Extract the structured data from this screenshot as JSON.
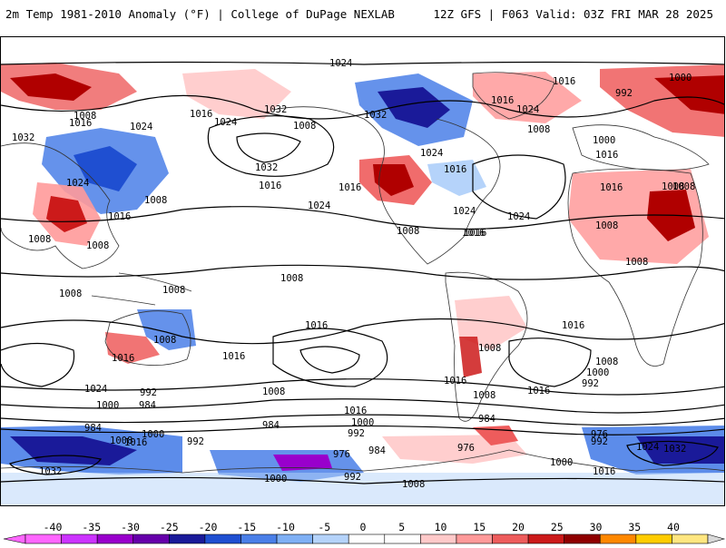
{
  "header": {
    "title": "2m Temp 1981-2010 Anomaly (°F) | College of DuPage NEXLAB",
    "run_info": "12Z GFS | F063 Valid: 03Z FRI MAR 28 2025"
  },
  "map": {
    "variable": "2m temperature anomaly",
    "contour_field": "sea level pressure isobars",
    "isobar_labels": [
      {
        "id": "1024-npac",
        "text": "1024"
      },
      {
        "id": "1008-scan",
        "text": "1008"
      },
      {
        "id": "1016-scan",
        "text": "1016"
      },
      {
        "id": "1024-russia",
        "text": "1024"
      },
      {
        "id": "1016-russia",
        "text": "1016"
      },
      {
        "id": "1032-asia",
        "text": "1032"
      },
      {
        "id": "1024-asia",
        "text": "1024"
      },
      {
        "id": "1024-asia2",
        "text": "1024"
      },
      {
        "id": "1016-china",
        "text": "1016"
      },
      {
        "id": "1008-china",
        "text": "1008"
      },
      {
        "id": "1008-india",
        "text": "1008"
      },
      {
        "id": "1008-sea",
        "text": "1008"
      },
      {
        "id": "1008-pac",
        "text": "1008"
      },
      {
        "id": "1032-npac",
        "text": "1032"
      },
      {
        "id": "1008-ak",
        "text": "1008"
      },
      {
        "id": "1032-can",
        "text": "1032"
      },
      {
        "id": "1024-can",
        "text": "1024"
      },
      {
        "id": "1016-can",
        "text": "1016"
      },
      {
        "id": "1032-pac2",
        "text": "1032"
      },
      {
        "id": "1016-pac",
        "text": "1016"
      },
      {
        "id": "1024-pac",
        "text": "1024"
      },
      {
        "id": "1016-us",
        "text": "1016"
      },
      {
        "id": "1016-us2",
        "text": "1016"
      },
      {
        "id": "1024-atl",
        "text": "1024"
      },
      {
        "id": "1008-mex",
        "text": "1008"
      },
      {
        "id": "1016-atl",
        "text": "1016"
      },
      {
        "id": "1024-atl2",
        "text": "1024"
      },
      {
        "id": "1016-green",
        "text": "1016"
      },
      {
        "id": "1024-green",
        "text": "1024"
      },
      {
        "id": "1008-green",
        "text": "1008"
      },
      {
        "id": "1016-arc",
        "text": "1016"
      },
      {
        "id": "992-arc",
        "text": "992"
      },
      {
        "id": "1000-arc",
        "text": "1000"
      },
      {
        "id": "1000-eur",
        "text": "1000"
      },
      {
        "id": "1016-eur",
        "text": "1016"
      },
      {
        "id": "1016-eur2",
        "text": "1016"
      },
      {
        "id": "1008-med",
        "text": "1008"
      },
      {
        "id": "1008-afr",
        "text": "1008"
      },
      {
        "id": "1008-mideast",
        "text": "1008"
      },
      {
        "id": "1008-afr2",
        "text": "1008"
      },
      {
        "id": "1008-aus",
        "text": "1008"
      },
      {
        "id": "1008-indo",
        "text": "1008"
      },
      {
        "id": "1008-aus2",
        "text": "1008"
      },
      {
        "id": "1016-aus",
        "text": "1016"
      },
      {
        "id": "1016-tas",
        "text": "1016"
      },
      {
        "id": "1016-spac",
        "text": "1016"
      },
      {
        "id": "1008-chile",
        "text": "1008"
      },
      {
        "id": "1016-arg",
        "text": "1016"
      },
      {
        "id": "1008-arg",
        "text": "1008"
      },
      {
        "id": "1016-satl",
        "text": "1016"
      },
      {
        "id": "1016-sind",
        "text": "1016"
      },
      {
        "id": "1008-sind",
        "text": "1008"
      },
      {
        "id": "1000-sind",
        "text": "1000"
      },
      {
        "id": "992-sind",
        "text": "992"
      },
      {
        "id": "1024-sind",
        "text": "1024"
      },
      {
        "id": "1000-sind2",
        "text": "1000"
      },
      {
        "id": "992-sind2",
        "text": "992"
      },
      {
        "id": "984-sind",
        "text": "984"
      },
      {
        "id": "984-so",
        "text": "984"
      },
      {
        "id": "1008-so",
        "text": "1008"
      },
      {
        "id": "1000-so",
        "text": "1000"
      },
      {
        "id": "1016-so",
        "text": "1016"
      },
      {
        "id": "992-so",
        "text": "992"
      },
      {
        "id": "1032-so",
        "text": "1032"
      },
      {
        "id": "1008-spac2",
        "text": "1008"
      },
      {
        "id": "1016-spac2",
        "text": "1016"
      },
      {
        "id": "1000-spac",
        "text": "1000"
      },
      {
        "id": "992-spac",
        "text": "992"
      },
      {
        "id": "984-spac",
        "text": "984"
      },
      {
        "id": "976-spac",
        "text": "976"
      },
      {
        "id": "984-spac2",
        "text": "984"
      },
      {
        "id": "984-drake",
        "text": "984"
      },
      {
        "id": "976-drake",
        "text": "976"
      },
      {
        "id": "1000-ant",
        "text": "1000"
      },
      {
        "id": "992-ant",
        "text": "992"
      },
      {
        "id": "1008-ant",
        "text": "1008"
      },
      {
        "id": "976-satl",
        "text": "976"
      },
      {
        "id": "992-satl",
        "text": "992"
      },
      {
        "id": "1000-satl",
        "text": "1000"
      },
      {
        "id": "1016-satl2",
        "text": "1016"
      },
      {
        "id": "1024-sind3",
        "text": "1024"
      },
      {
        "id": "1032-sind",
        "text": "1032"
      }
    ]
  },
  "colorbar": {
    "labels": [
      "-40",
      "-35",
      "-30",
      "-25",
      "-20",
      "-15",
      "-10",
      "-5",
      "0",
      "5",
      "10",
      "15",
      "20",
      "25",
      "30",
      "35",
      "40"
    ],
    "colors": [
      "#ff66ff",
      "#cc33ff",
      "#9900cc",
      "#6600aa",
      "#1a1a99",
      "#1f4fd1",
      "#4a7fe8",
      "#7fb0f5",
      "#b5d3fa",
      "#ffffff",
      "#ffffff",
      "#ffc9c9",
      "#ff9a9a",
      "#ee5c5c",
      "#cc1a1a",
      "#8f0000",
      "#ff8800",
      "#ffcc00",
      "#ffe680"
    ]
  }
}
